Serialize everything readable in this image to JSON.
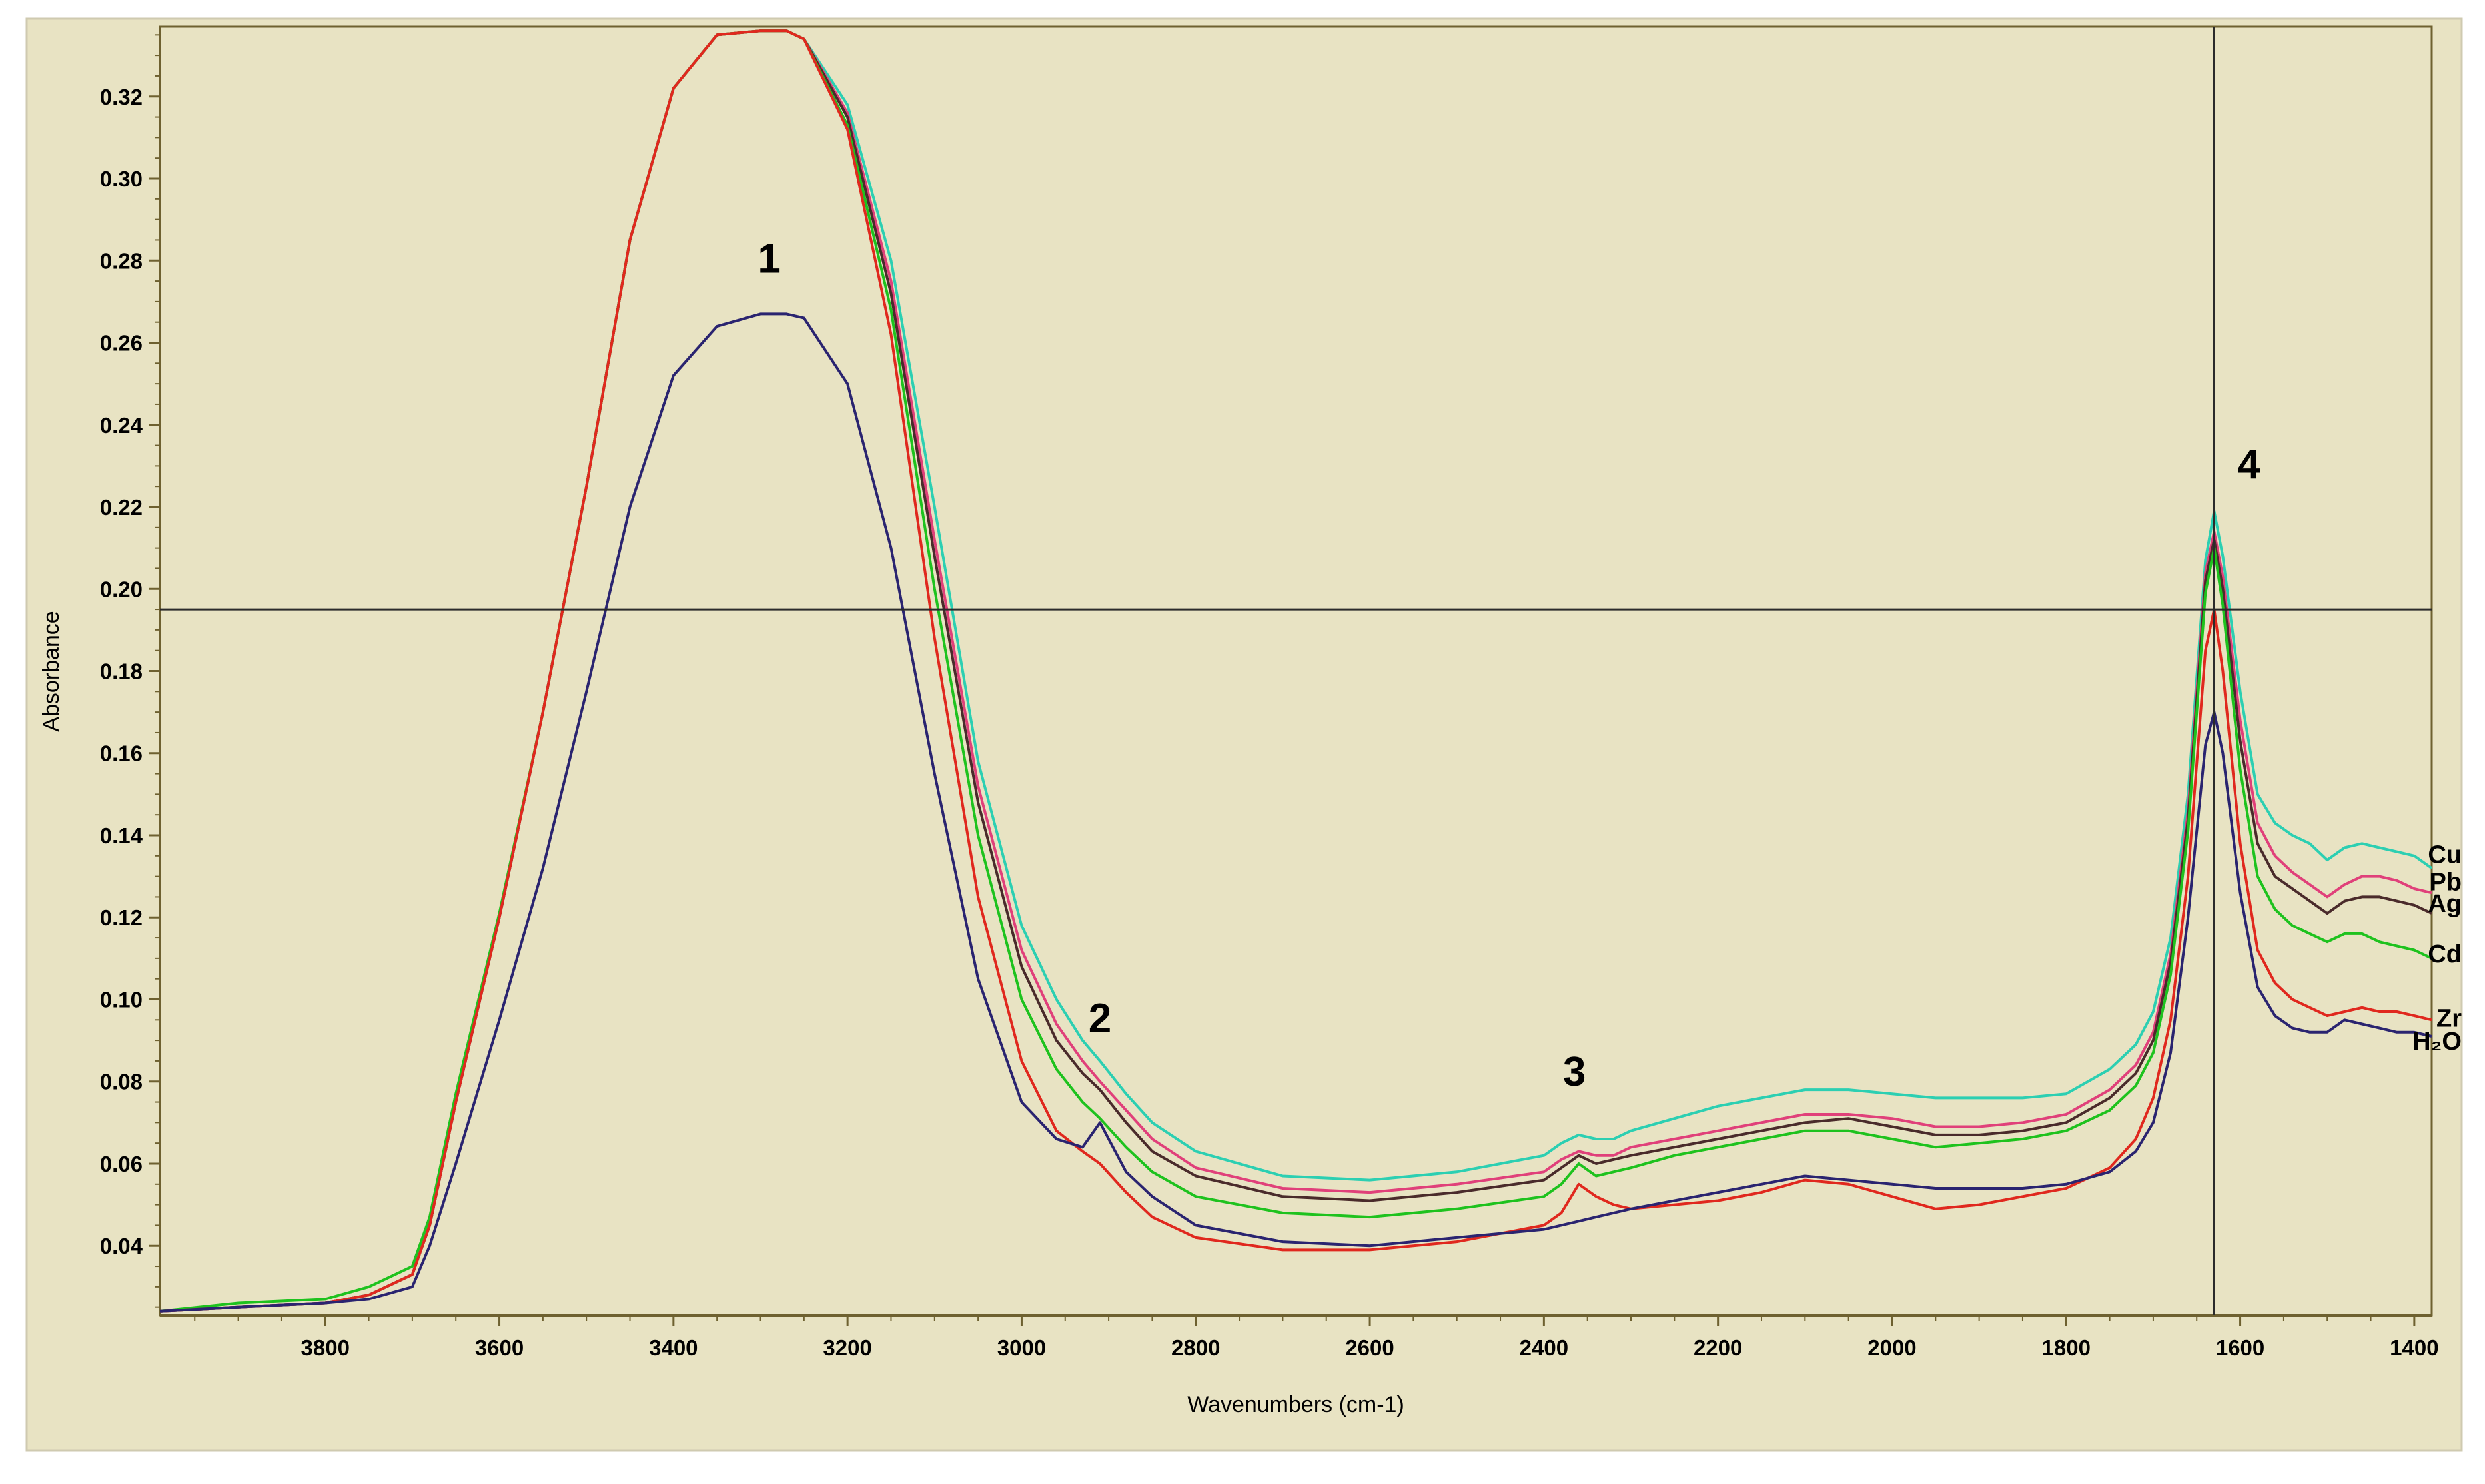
{
  "chart_data": {
    "type": "line",
    "title": "",
    "xlabel": "Wavenumbers (cm-1)",
    "ylabel": "Absorbance",
    "xlim": [
      3990,
      1380
    ],
    "ylim": [
      0.023,
      0.337
    ],
    "x_reversed": true,
    "grid": false,
    "x_ticks": [
      3800,
      3600,
      3400,
      3200,
      3000,
      2800,
      2600,
      2400,
      2200,
      2000,
      1800,
      1600,
      1400
    ],
    "y_ticks": [
      0.04,
      0.06,
      0.08,
      0.1,
      0.12,
      0.14,
      0.16,
      0.18,
      0.2,
      0.22,
      0.24,
      0.26,
      0.28,
      0.3,
      0.32
    ],
    "y_tick_labels": [
      "0.04",
      "0.06",
      "0.08",
      "0.10",
      "0.12",
      "0.14",
      "0.16",
      "0.18",
      "0.20",
      "0.22",
      "0.24",
      "0.26",
      "0.28",
      "0.30",
      "0.32"
    ],
    "cursor": {
      "x": 1630,
      "y": 0.195
    },
    "colors": {
      "background": "#e8e3c3",
      "frame": "#6e6130",
      "cursor": "#2b2b2b"
    },
    "x": [
      3990,
      3900,
      3800,
      3750,
      3700,
      3680,
      3650,
      3600,
      3550,
      3500,
      3450,
      3400,
      3350,
      3300,
      3270,
      3250,
      3200,
      3150,
      3100,
      3050,
      3000,
      2960,
      2930,
      2910,
      2880,
      2850,
      2800,
      2700,
      2600,
      2500,
      2400,
      2380,
      2360,
      2340,
      2320,
      2300,
      2250,
      2200,
      2150,
      2100,
      2050,
      2000,
      1950,
      1900,
      1850,
      1800,
      1750,
      1720,
      1700,
      1680,
      1660,
      1640,
      1630,
      1620,
      1600,
      1580,
      1560,
      1540,
      1520,
      1500,
      1480,
      1460,
      1440,
      1420,
      1400,
      1380
    ],
    "series": [
      {
        "name": "Cu",
        "color": "#2ccfb2",
        "values": [
          0.024,
          0.025,
          0.026,
          0.028,
          0.033,
          0.045,
          0.075,
          0.12,
          0.17,
          0.225,
          0.285,
          0.322,
          0.335,
          0.336,
          0.336,
          0.334,
          0.318,
          0.28,
          0.22,
          0.158,
          0.118,
          0.1,
          0.09,
          0.085,
          0.077,
          0.07,
          0.063,
          0.057,
          0.056,
          0.058,
          0.062,
          0.065,
          0.067,
          0.066,
          0.066,
          0.068,
          0.071,
          0.074,
          0.076,
          0.078,
          0.078,
          0.077,
          0.076,
          0.076,
          0.076,
          0.077,
          0.083,
          0.089,
          0.097,
          0.115,
          0.15,
          0.207,
          0.219,
          0.208,
          0.175,
          0.15,
          0.143,
          0.14,
          0.138,
          0.134,
          0.137,
          0.138,
          0.137,
          0.136,
          0.135,
          0.132
        ]
      },
      {
        "name": "Pb",
        "color": "#e0407a",
        "values": [
          0.024,
          0.025,
          0.026,
          0.028,
          0.033,
          0.045,
          0.075,
          0.12,
          0.17,
          0.225,
          0.285,
          0.322,
          0.335,
          0.336,
          0.336,
          0.334,
          0.316,
          0.275,
          0.212,
          0.152,
          0.112,
          0.094,
          0.085,
          0.08,
          0.073,
          0.066,
          0.059,
          0.054,
          0.053,
          0.055,
          0.058,
          0.061,
          0.063,
          0.062,
          0.062,
          0.064,
          0.066,
          0.068,
          0.07,
          0.072,
          0.072,
          0.071,
          0.069,
          0.069,
          0.07,
          0.072,
          0.078,
          0.084,
          0.092,
          0.111,
          0.146,
          0.204,
          0.214,
          0.203,
          0.168,
          0.143,
          0.135,
          0.131,
          0.128,
          0.125,
          0.128,
          0.13,
          0.13,
          0.129,
          0.127,
          0.126
        ]
      },
      {
        "name": "Ag",
        "color": "#4a2b2b",
        "values": [
          0.024,
          0.025,
          0.026,
          0.028,
          0.033,
          0.045,
          0.075,
          0.12,
          0.17,
          0.225,
          0.285,
          0.322,
          0.335,
          0.336,
          0.336,
          0.334,
          0.315,
          0.272,
          0.208,
          0.148,
          0.108,
          0.09,
          0.082,
          0.078,
          0.07,
          0.063,
          0.057,
          0.052,
          0.051,
          0.053,
          0.056,
          0.059,
          0.062,
          0.06,
          0.061,
          0.062,
          0.064,
          0.066,
          0.068,
          0.07,
          0.071,
          0.069,
          0.067,
          0.067,
          0.068,
          0.07,
          0.076,
          0.082,
          0.09,
          0.109,
          0.144,
          0.202,
          0.212,
          0.2,
          0.163,
          0.138,
          0.13,
          0.127,
          0.124,
          0.121,
          0.124,
          0.125,
          0.125,
          0.124,
          0.123,
          0.121
        ]
      },
      {
        "name": "Cd",
        "color": "#1ec21e",
        "values": [
          0.024,
          0.026,
          0.027,
          0.03,
          0.035,
          0.047,
          0.077,
          0.121,
          0.17,
          0.225,
          0.285,
          0.322,
          0.335,
          0.336,
          0.336,
          0.334,
          0.313,
          0.268,
          0.2,
          0.14,
          0.1,
          0.083,
          0.075,
          0.071,
          0.064,
          0.058,
          0.052,
          0.048,
          0.047,
          0.049,
          0.052,
          0.055,
          0.06,
          0.057,
          0.058,
          0.059,
          0.062,
          0.064,
          0.066,
          0.068,
          0.068,
          0.066,
          0.064,
          0.065,
          0.066,
          0.068,
          0.073,
          0.079,
          0.087,
          0.106,
          0.141,
          0.199,
          0.21,
          0.196,
          0.156,
          0.13,
          0.122,
          0.118,
          0.116,
          0.114,
          0.116,
          0.116,
          0.114,
          0.113,
          0.112,
          0.11
        ]
      },
      {
        "name": "Zr",
        "color": "#e0281e",
        "values": [
          0.024,
          0.025,
          0.026,
          0.028,
          0.033,
          0.045,
          0.075,
          0.12,
          0.17,
          0.225,
          0.285,
          0.322,
          0.335,
          0.336,
          0.336,
          0.334,
          0.312,
          0.262,
          0.188,
          0.125,
          0.085,
          0.068,
          0.063,
          0.06,
          0.053,
          0.047,
          0.042,
          0.039,
          0.039,
          0.041,
          0.045,
          0.048,
          0.055,
          0.052,
          0.05,
          0.049,
          0.05,
          0.051,
          0.053,
          0.056,
          0.055,
          0.052,
          0.049,
          0.05,
          0.052,
          0.054,
          0.059,
          0.066,
          0.076,
          0.095,
          0.13,
          0.185,
          0.195,
          0.18,
          0.138,
          0.112,
          0.104,
          0.1,
          0.098,
          0.096,
          0.097,
          0.098,
          0.097,
          0.097,
          0.096,
          0.095
        ]
      },
      {
        "name": "H₂O",
        "color": "#2a2470",
        "values": [
          0.024,
          0.025,
          0.026,
          0.027,
          0.03,
          0.04,
          0.06,
          0.095,
          0.132,
          0.175,
          0.22,
          0.252,
          0.264,
          0.267,
          0.267,
          0.266,
          0.25,
          0.21,
          0.155,
          0.105,
          0.075,
          0.066,
          0.064,
          0.07,
          0.058,
          0.052,
          0.045,
          0.041,
          0.04,
          0.042,
          0.044,
          0.045,
          0.046,
          0.047,
          0.048,
          0.049,
          0.051,
          0.053,
          0.055,
          0.057,
          0.056,
          0.055,
          0.054,
          0.054,
          0.054,
          0.055,
          0.058,
          0.063,
          0.07,
          0.087,
          0.12,
          0.162,
          0.17,
          0.16,
          0.126,
          0.103,
          0.096,
          0.093,
          0.092,
          0.092,
          0.095,
          0.094,
          0.093,
          0.092,
          0.092,
          0.091
        ]
      }
    ],
    "series_labels": [
      "Cu",
      "Pb",
      "Ag",
      "Cd",
      "Zr",
      "H₂O"
    ],
    "annotations": [
      {
        "text": "1",
        "x": 3290,
        "y": 0.277
      },
      {
        "text": "2",
        "x": 2910,
        "y": 0.092
      },
      {
        "text": "3",
        "x": 2365,
        "y": 0.079
      },
      {
        "text": "4",
        "x": 1590,
        "y": 0.227
      }
    ]
  }
}
